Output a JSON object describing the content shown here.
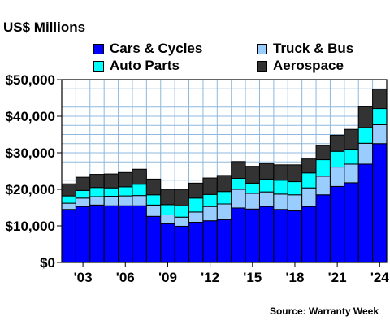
{
  "header": {
    "unit_label": "US$ Millions"
  },
  "source": "Source: Warranty Week",
  "colors": {
    "cars": "#0000ff",
    "truck": "#99ccff",
    "auto": "#00ffff",
    "aero": "#333333",
    "grid": "#8fb8dc"
  },
  "chart_data": {
    "type": "bar",
    "stacked": true,
    "x": [
      2002,
      2003,
      2004,
      2005,
      2006,
      2007,
      2008,
      2009,
      2010,
      2011,
      2012,
      2013,
      2014,
      2015,
      2016,
      2017,
      2018,
      2019,
      2020,
      2021,
      2022,
      2023,
      2024
    ],
    "x_tick_labels": [
      {
        "x": 2003,
        "label": "'03"
      },
      {
        "x": 2006,
        "label": "'06"
      },
      {
        "x": 2009,
        "label": "'09"
      },
      {
        "x": 2012,
        "label": "'12"
      },
      {
        "x": 2015,
        "label": "'15"
      },
      {
        "x": 2018,
        "label": "'18"
      },
      {
        "x": 2021,
        "label": "'21"
      },
      {
        "x": 2024,
        "label": "'24"
      }
    ],
    "series": [
      {
        "name": "Cars & Cycles",
        "key": "cars",
        "values": [
          14500,
          15300,
          15700,
          15500,
          15500,
          15500,
          12600,
          10600,
          9900,
          11000,
          11400,
          11700,
          14900,
          14600,
          15300,
          14500,
          14100,
          15300,
          18500,
          20800,
          21800,
          26900,
          32500
        ]
      },
      {
        "name": "Truck & Bus",
        "key": "truck",
        "values": [
          1700,
          2300,
          2300,
          2600,
          2700,
          2800,
          3100,
          2400,
          2500,
          2800,
          3900,
          4300,
          5100,
          4300,
          4000,
          4200,
          4400,
          5100,
          5100,
          5300,
          5100,
          5700,
          5200
        ]
      },
      {
        "name": "Auto Parts",
        "key": "auto",
        "values": [
          2000,
          2100,
          2500,
          2300,
          2500,
          3100,
          2800,
          2800,
          3100,
          3800,
          3300,
          3400,
          3000,
          2800,
          3500,
          3800,
          3600,
          4100,
          4500,
          4300,
          4100,
          4300,
          4400
        ]
      },
      {
        "name": "Aerospace",
        "key": "aero",
        "values": [
          3300,
          3600,
          3600,
          3800,
          3900,
          4100,
          4300,
          4200,
          4500,
          4100,
          4500,
          4400,
          4600,
          4600,
          4300,
          4200,
          4600,
          3800,
          3900,
          4400,
          5400,
          5700,
          5300
        ]
      }
    ],
    "yticks": [
      {
        "v": 0,
        "label": "$0"
      },
      {
        "v": 10000,
        "label": "$10,000"
      },
      {
        "v": 20000,
        "label": "$20,000"
      },
      {
        "v": 30000,
        "label": "$30,000"
      },
      {
        "v": 40000,
        "label": "$40,000"
      },
      {
        "v": 50000,
        "label": "$50,000"
      }
    ],
    "ylim": [
      0,
      50000
    ],
    "grid": true,
    "legend_position": "top"
  }
}
